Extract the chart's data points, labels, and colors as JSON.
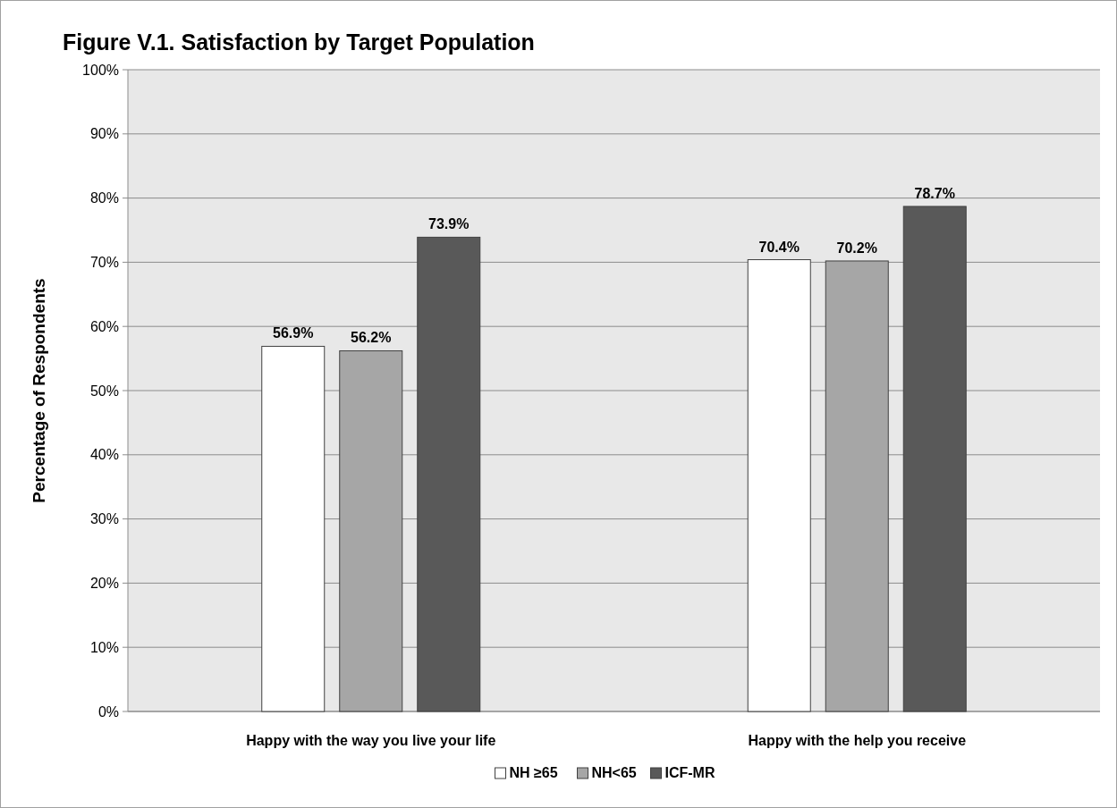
{
  "chart_data": {
    "type": "bar",
    "title": "Figure V.1. Satisfaction by Target Population",
    "ylabel": "Percentage of Respondents",
    "categories": [
      "Happy with the way you live your life",
      "Happy with the help you receive"
    ],
    "series": [
      {
        "name": "NH ≥65",
        "color": "#ffffff",
        "values": [
          56.9,
          70.4
        ],
        "value_labels": [
          "56.9%",
          "70.4%"
        ]
      },
      {
        "name": "NH<65",
        "color": "#a6a6a6",
        "values": [
          56.2,
          70.2
        ],
        "value_labels": [
          "56.2%",
          "70.2%"
        ]
      },
      {
        "name": "ICF-MR",
        "color": "#595959",
        "values": [
          73.9,
          78.7
        ],
        "value_labels": [
          "73.9%",
          "78.7%"
        ]
      }
    ],
    "ylim": [
      0,
      100
    ],
    "yticks": [
      {
        "value": 0,
        "label": "0%"
      },
      {
        "value": 10,
        "label": "10%"
      },
      {
        "value": 20,
        "label": "20%"
      },
      {
        "value": 30,
        "label": "30%"
      },
      {
        "value": 40,
        "label": "40%"
      },
      {
        "value": 50,
        "label": "50%"
      },
      {
        "value": 60,
        "label": "60%"
      },
      {
        "value": 70,
        "label": "70%"
      },
      {
        "value": 80,
        "label": "80%"
      },
      {
        "value": 90,
        "label": "90%"
      },
      {
        "value": 100,
        "label": "100%"
      }
    ],
    "grid": "y",
    "legend": "bottom"
  }
}
